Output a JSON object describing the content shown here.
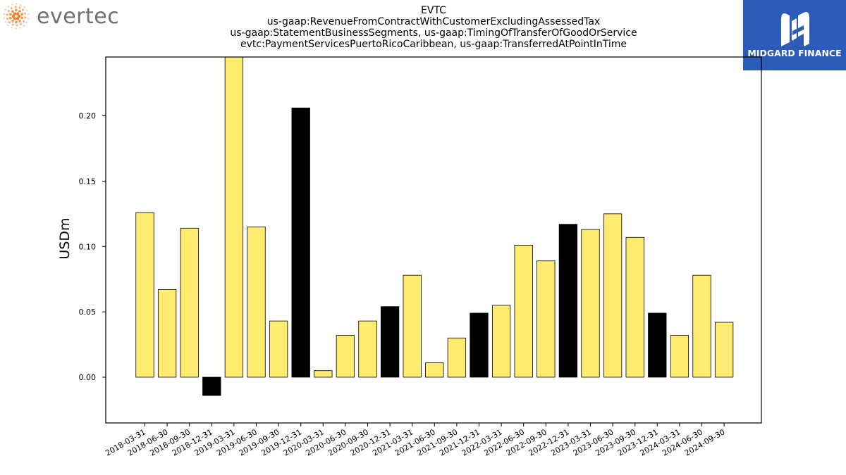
{
  "logos": {
    "left_text": "evertec",
    "right_text": "MIDGARD FINANCE",
    "right_bg": "#2d5bb8",
    "dot_color": "#f07e26"
  },
  "chart_data": {
    "type": "bar",
    "title_lines": [
      "EVTC",
      "us-gaap:RevenueFromContractWithCustomerExcludingAssessedTax",
      "us-gaap:StatementBusinessSegments, us-gaap:TimingOfTransferOfGoodOrService",
      "evtc:PaymentServicesPuertoRicoCaribbean, us-gaap:TransferredAtPointInTime"
    ],
    "ylabel": "USDm",
    "xlabel": "",
    "ylim": [
      -0.035,
      0.245
    ],
    "yticks": [
      0.0,
      0.05,
      0.1,
      0.15,
      0.2
    ],
    "ytick_labels": [
      "0.00",
      "0.05",
      "0.10",
      "0.15",
      "0.20"
    ],
    "grid": false,
    "colors": {
      "regular": "#ffeb70",
      "quarter_end_q4": "#000000",
      "edge": "#000000"
    },
    "categories": [
      "2018-03-31",
      "2018-06-30",
      "2018-09-30",
      "2018-12-31",
      "2019-03-31",
      "2019-06-30",
      "2019-09-30",
      "2019-12-31",
      "2020-03-31",
      "2020-06-30",
      "2020-09-30",
      "2020-12-31",
      "2021-03-31",
      "2021-06-30",
      "2021-09-30",
      "2021-12-31",
      "2022-03-31",
      "2022-06-30",
      "2022-09-30",
      "2022-12-31",
      "2023-03-31",
      "2023-06-30",
      "2023-09-30",
      "2023-12-31",
      "2024-03-31",
      "2024-06-30",
      "2024-09-30"
    ],
    "values": [
      0.126,
      0.067,
      0.114,
      -0.014,
      0.25,
      0.115,
      0.043,
      0.206,
      0.005,
      0.032,
      0.043,
      0.054,
      0.078,
      0.011,
      0.03,
      0.049,
      0.055,
      0.101,
      0.089,
      0.117,
      0.113,
      0.125,
      0.107,
      0.049,
      0.032,
      0.078,
      0.042
    ],
    "highlight": [
      false,
      false,
      false,
      true,
      false,
      false,
      false,
      true,
      false,
      false,
      false,
      true,
      false,
      false,
      false,
      true,
      false,
      false,
      false,
      true,
      false,
      false,
      false,
      true,
      false,
      false,
      false
    ]
  }
}
